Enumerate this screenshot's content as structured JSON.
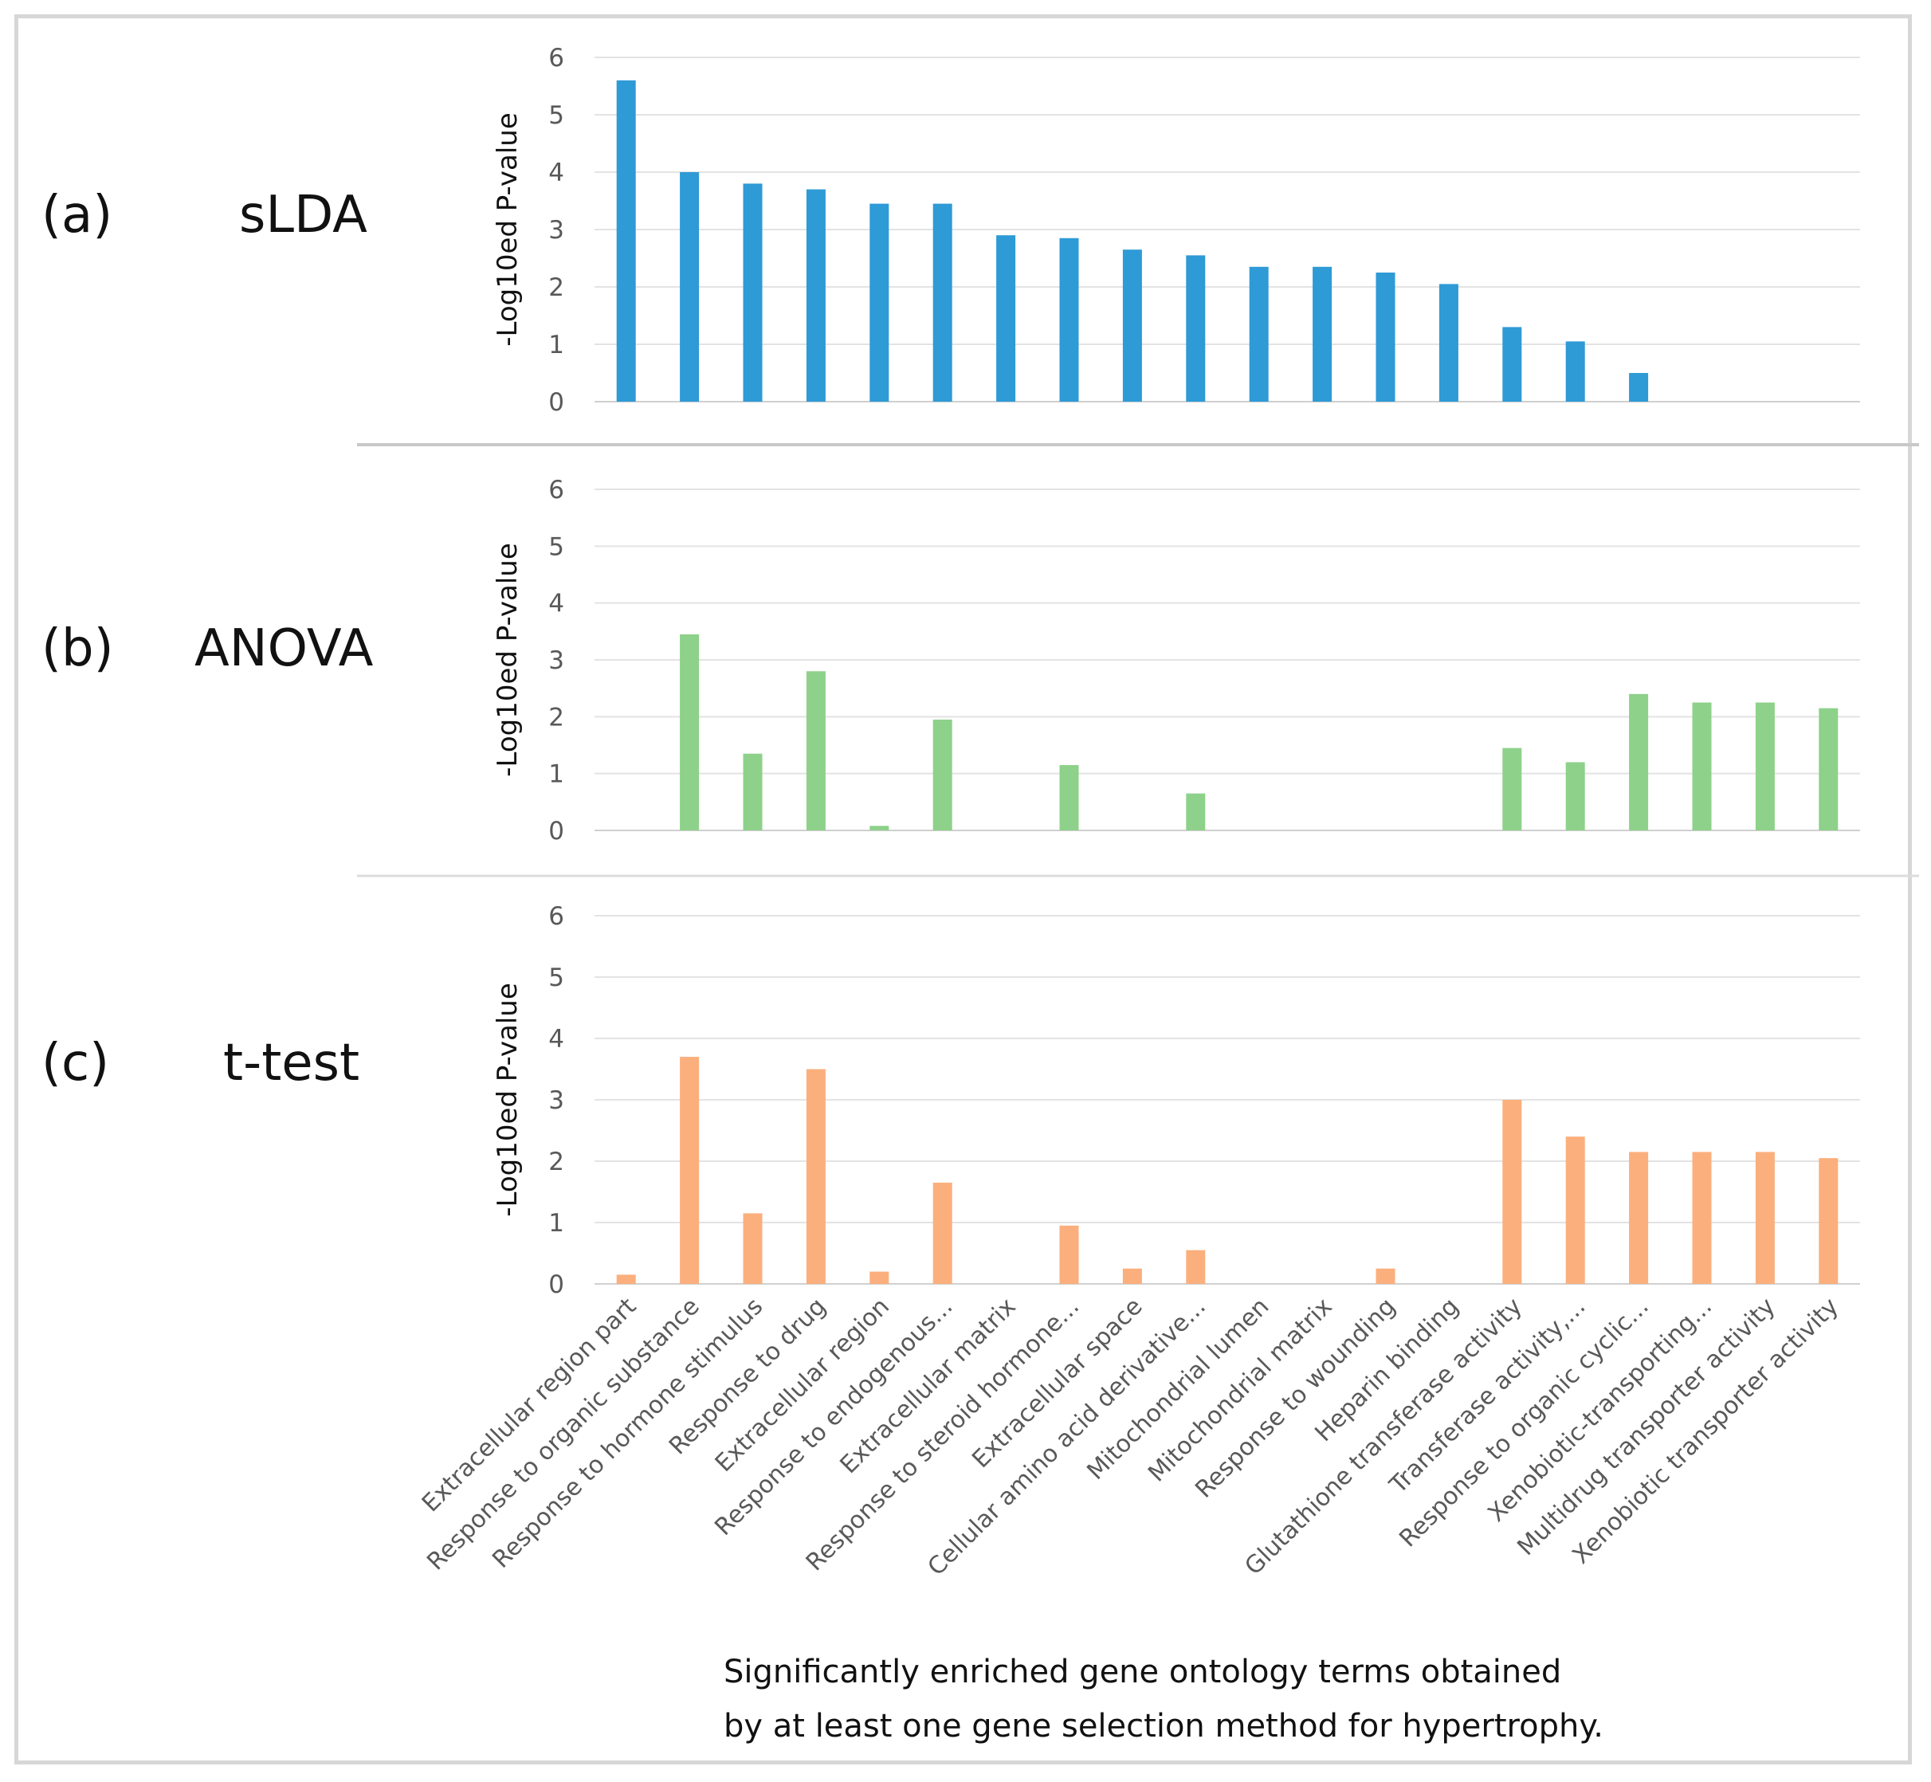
{
  "panels": [
    {
      "letter": "(a)",
      "method": "sLDA"
    },
    {
      "letter": "(b)",
      "method": "ANOVA"
    },
    {
      "letter": "(c)",
      "method": "t-test"
    }
  ],
  "caption": {
    "line1": "Significantly enriched gene ontology terms obtained",
    "line2": "by at least one gene selection method for hypertrophy."
  },
  "chart_data": [
    {
      "type": "bar",
      "ylabel": "-Log10ed P-value",
      "ylim": [
        0,
        6
      ],
      "yticks": [
        0,
        1,
        2,
        3,
        4,
        5,
        6
      ],
      "grid": true,
      "color": "#2E9AD6",
      "categories": [
        "Extracellular region part",
        "Response to organic substance",
        "Response to hormone stimulus",
        "Response to drug",
        "Extracellular region",
        "Response to endogenous...",
        "Extracellular matrix",
        "Response to steroid hormone...",
        "Extracellular space",
        "Cellular amino acid derivative...",
        "Mitochondrial lumen",
        "Mitochondrial matrix",
        "Response to wounding",
        "Heparin binding",
        "Glutathione transferase activity",
        "Transferase activity,...",
        "Response to organic cyclic...",
        "Xenobiotic-transporting...",
        "Multidrug transporter activity",
        "Xenobiotic transporter activity"
      ],
      "values": [
        5.6,
        4.0,
        3.8,
        3.7,
        3.45,
        3.45,
        2.9,
        2.85,
        2.65,
        2.55,
        2.35,
        2.35,
        2.25,
        2.05,
        1.3,
        1.05,
        0.5,
        0,
        0,
        0
      ]
    },
    {
      "type": "bar",
      "ylabel": "-Log10ed P-value",
      "ylim": [
        0,
        6
      ],
      "yticks": [
        0,
        1,
        2,
        3,
        4,
        5,
        6
      ],
      "grid": true,
      "color": "#8ED18A",
      "categories": [
        "Extracellular region part",
        "Response to organic substance",
        "Response to hormone stimulus",
        "Response to drug",
        "Extracellular region",
        "Response to endogenous...",
        "Extracellular matrix",
        "Response to steroid hormone...",
        "Extracellular space",
        "Cellular amino acid derivative...",
        "Mitochondrial lumen",
        "Mitochondrial matrix",
        "Response to wounding",
        "Heparin binding",
        "Glutathione transferase activity",
        "Transferase activity,...",
        "Response to organic cyclic...",
        "Xenobiotic-transporting...",
        "Multidrug transporter activity",
        "Xenobiotic transporter activity"
      ],
      "values": [
        0,
        3.45,
        1.35,
        2.8,
        0.08,
        1.95,
        0,
        1.15,
        0,
        0.65,
        0,
        0,
        0,
        0,
        1.45,
        1.2,
        2.4,
        2.25,
        2.25,
        2.15
      ]
    },
    {
      "type": "bar",
      "ylabel": "-Log10ed P-value",
      "ylim": [
        0,
        6
      ],
      "yticks": [
        0,
        1,
        2,
        3,
        4,
        5,
        6
      ],
      "grid": true,
      "color": "#FBAF7D",
      "categories": [
        "Extracellular region part",
        "Response to organic substance",
        "Response to hormone stimulus",
        "Response to drug",
        "Extracellular region",
        "Response to endogenous...",
        "Extracellular matrix",
        "Response to steroid hormone...",
        "Extracellular space",
        "Cellular amino acid derivative...",
        "Mitochondrial lumen",
        "Mitochondrial matrix",
        "Response to wounding",
        "Heparin binding",
        "Glutathione transferase activity",
        "Transferase activity,...",
        "Response to organic cyclic...",
        "Xenobiotic-transporting...",
        "Multidrug transporter activity",
        "Xenobiotic transporter activity"
      ],
      "values": [
        0.15,
        3.7,
        1.15,
        3.5,
        0.2,
        1.65,
        0,
        0.95,
        0.25,
        0.55,
        0,
        0,
        0.25,
        0,
        3.0,
        2.4,
        2.15,
        2.15,
        2.15,
        2.05
      ]
    }
  ]
}
